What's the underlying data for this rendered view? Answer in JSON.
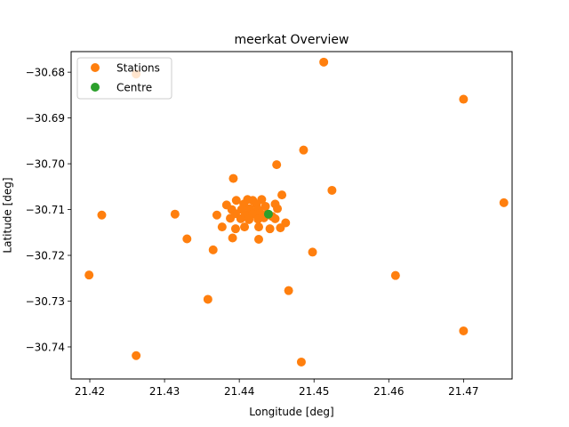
{
  "chart_data": {
    "type": "scatter",
    "title": "meerkat Overview",
    "xlabel": "Longitude [deg]",
    "ylabel": "Latitude [deg]",
    "xlim": [
      21.4175,
      21.4765
    ],
    "ylim": [
      -30.747,
      -30.6755
    ],
    "xticks": [
      21.42,
      21.43,
      21.44,
      21.45,
      21.46,
      21.47
    ],
    "xtick_labels": [
      "21.42",
      "21.43",
      "21.44",
      "21.45",
      "21.46",
      "21.47"
    ],
    "yticks": [
      -30.68,
      -30.69,
      -30.7,
      -30.71,
      -30.72,
      -30.73,
      -30.74
    ],
    "ytick_labels": [
      "−30.68",
      "−30.69",
      "−30.70",
      "−30.71",
      "−30.72",
      "−30.73",
      "−30.74"
    ],
    "grid": false,
    "legend": "top-left",
    "series": [
      {
        "name": "Stations",
        "color": "#ff7f0e",
        "points": [
          [
            21.4262,
            -30.6804
          ],
          [
            21.4513,
            -30.6778
          ],
          [
            21.47,
            -30.6859
          ],
          [
            21.4486,
            -30.697
          ],
          [
            21.445,
            -30.7002
          ],
          [
            21.4392,
            -30.7032
          ],
          [
            21.4524,
            -30.7058
          ],
          [
            21.4754,
            -30.7085
          ],
          [
            21.4216,
            -30.7112
          ],
          [
            21.4314,
            -30.711
          ],
          [
            21.433,
            -30.7164
          ],
          [
            21.4365,
            -30.7188
          ],
          [
            21.4498,
            -30.7193
          ],
          [
            21.4199,
            -30.7243
          ],
          [
            21.4609,
            -30.7244
          ],
          [
            21.4466,
            -30.7277
          ],
          [
            21.4358,
            -30.7296
          ],
          [
            21.47,
            -30.7365
          ],
          [
            21.4262,
            -30.7419
          ],
          [
            21.4483,
            -30.7433
          ],
          [
            21.4457,
            -30.7068
          ],
          [
            21.443,
            -30.7078
          ],
          [
            21.4411,
            -30.7078
          ],
          [
            21.4418,
            -30.708
          ],
          [
            21.4396,
            -30.708
          ],
          [
            21.4383,
            -30.709
          ],
          [
            21.4406,
            -30.7088
          ],
          [
            21.4423,
            -30.7088
          ],
          [
            21.4435,
            -30.7093
          ],
          [
            21.4448,
            -30.7088
          ],
          [
            21.439,
            -30.71
          ],
          [
            21.4403,
            -30.71
          ],
          [
            21.4414,
            -30.7098
          ],
          [
            21.4425,
            -30.71
          ],
          [
            21.4451,
            -30.7098
          ],
          [
            21.437,
            -30.7112
          ],
          [
            21.4395,
            -30.7109
          ],
          [
            21.4408,
            -30.7112
          ],
          [
            21.4418,
            -30.711
          ],
          [
            21.4428,
            -30.7108
          ],
          [
            21.4436,
            -30.7111
          ],
          [
            21.4444,
            -30.7115
          ],
          [
            21.4388,
            -30.7119
          ],
          [
            21.4402,
            -30.712
          ],
          [
            21.4413,
            -30.7122
          ],
          [
            21.4425,
            -30.7121
          ],
          [
            21.4433,
            -30.7118
          ],
          [
            21.4448,
            -30.712
          ],
          [
            21.4462,
            -30.7129
          ],
          [
            21.4377,
            -30.7138
          ],
          [
            21.4395,
            -30.7142
          ],
          [
            21.4407,
            -30.7138
          ],
          [
            21.4426,
            -30.7138
          ],
          [
            21.4441,
            -30.7142
          ],
          [
            21.4455,
            -30.714
          ],
          [
            21.4391,
            -30.7162
          ],
          [
            21.4426,
            -30.7165
          ]
        ]
      },
      {
        "name": "Centre",
        "color": "#2ca02c",
        "points": [
          [
            21.4439,
            -30.711
          ]
        ]
      }
    ]
  }
}
